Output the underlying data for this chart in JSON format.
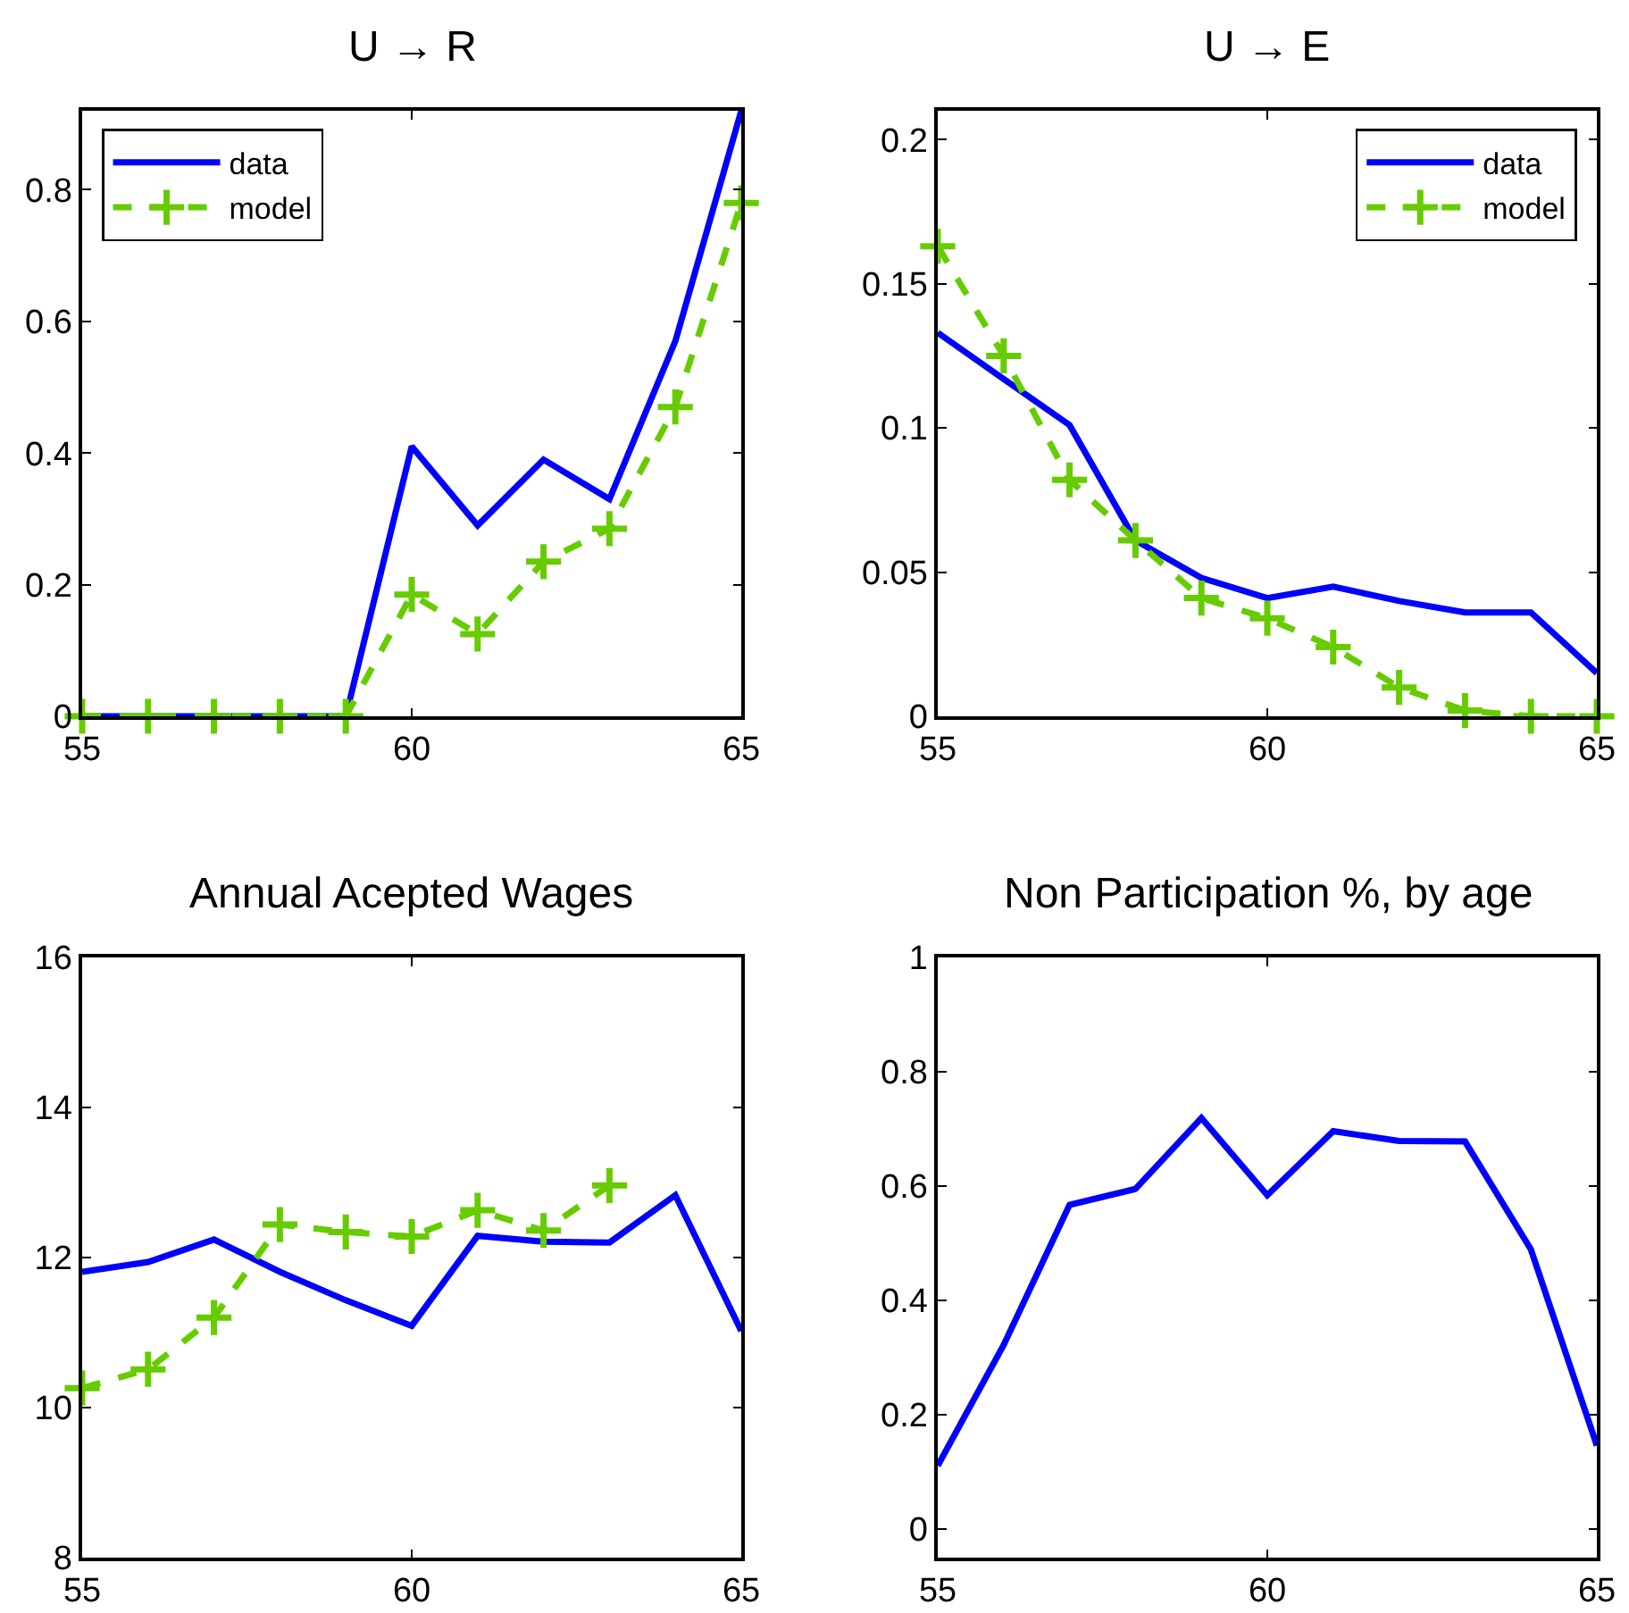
{
  "chart_data": [
    {
      "type": "line",
      "title": "U → R",
      "x": [
        55,
        56,
        57,
        58,
        59,
        60,
        61,
        62,
        63,
        64,
        65
      ],
      "xlim": [
        55,
        65
      ],
      "xticks": [
        55,
        60,
        65
      ],
      "ylim": [
        0,
        0.92
      ],
      "yticks": [
        0,
        0.2,
        0.4,
        0.6,
        0.8
      ],
      "legend": "top left",
      "series": [
        {
          "name": "data",
          "color": "#0000ff",
          "line_style": "solid",
          "marker": "none",
          "values": [
            0,
            0,
            0,
            0,
            0,
            0.41,
            0.29,
            0.39,
            0.33,
            0.57,
            0.92
          ]
        },
        {
          "name": "model",
          "color": "#66cc00",
          "line_style": "dashed",
          "marker": "cross",
          "values": [
            0,
            0,
            0,
            0,
            0,
            0.185,
            0.125,
            0.235,
            0.285,
            0.47,
            0.78
          ]
        }
      ]
    },
    {
      "type": "line",
      "title": "U → E",
      "x": [
        55,
        56,
        57,
        58,
        59,
        60,
        61,
        62,
        63,
        64,
        65
      ],
      "xlim": [
        55,
        65
      ],
      "xticks": [
        55,
        60,
        65
      ],
      "ylim": [
        0,
        0.21
      ],
      "yticks": [
        0,
        0.05,
        0.1,
        0.15,
        0.2
      ],
      "legend": "top right",
      "series": [
        {
          "name": "data",
          "color": "#0000ff",
          "line_style": "solid",
          "marker": "none",
          "values": [
            0.133,
            0.117,
            0.101,
            0.061,
            0.048,
            0.041,
            0.045,
            0.04,
            0.036,
            0.036,
            0.015
          ]
        },
        {
          "name": "model",
          "color": "#66cc00",
          "line_style": "dashed",
          "marker": "cross",
          "values": [
            0.163,
            0.125,
            0.082,
            0.061,
            0.041,
            0.034,
            0.024,
            0.01,
            0.002,
            0,
            0
          ]
        }
      ]
    },
    {
      "type": "line",
      "title": "Annual Acepted Wages",
      "x": [
        55,
        56,
        57,
        58,
        59,
        60,
        61,
        62,
        63,
        64,
        65
      ],
      "xlim": [
        55,
        65
      ],
      "xticks": [
        55,
        60,
        65
      ],
      "ylim": [
        8,
        16
      ],
      "yticks": [
        8,
        10,
        12,
        14,
        16
      ],
      "series": [
        {
          "color": "#0000ff",
          "line_style": "solid",
          "marker": "none",
          "values": [
            11.81,
            11.94,
            12.24,
            11.81,
            11.43,
            11.09,
            12.29,
            12.21,
            12.2,
            12.83,
            11.02
          ]
        },
        {
          "color": "#66cc00",
          "line_style": "dashed",
          "marker": "cross",
          "values": [
            10.26,
            10.51,
            11.2,
            12.44,
            12.34,
            12.28,
            12.63,
            12.36,
            12.96,
            null,
            null
          ]
        }
      ]
    },
    {
      "type": "line",
      "title": "Non Participation %, by age",
      "x": [
        55,
        56,
        57,
        58,
        59,
        60,
        61,
        62,
        63,
        64,
        65
      ],
      "xlim": [
        55,
        65
      ],
      "xticks": [
        55,
        60,
        65
      ],
      "ylim": [
        -0.05,
        1
      ],
      "yticks": [
        0,
        0.2,
        0.4,
        0.6,
        0.8,
        1
      ],
      "series": [
        {
          "color": "#0000ff",
          "line_style": "solid",
          "marker": "none",
          "values": [
            0.111,
            0.322,
            0.567,
            0.595,
            0.719,
            0.584,
            0.696,
            0.679,
            0.678,
            0.489,
            0.146
          ]
        }
      ]
    }
  ]
}
